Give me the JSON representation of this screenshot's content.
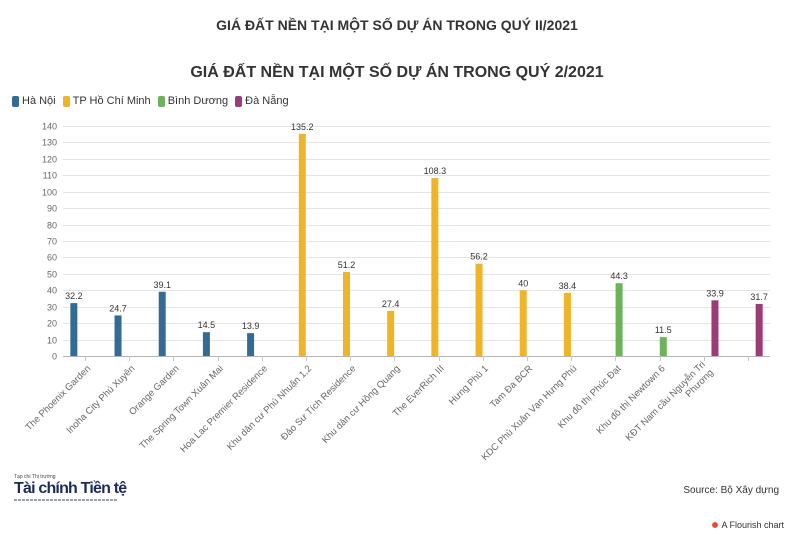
{
  "page": {
    "heading": "GIÁ ĐẤT NỀN TẠI MỘT SỐ DỰ ÁN TRONG QUÝ II/2021"
  },
  "chart_data": {
    "type": "bar",
    "title": "GIÁ ĐẤT NỀN TẠI MỘT SỐ DỰ ÁN TRONG QUÝ 2/2021",
    "xlabel": "",
    "ylabel": "",
    "ylim": [
      0,
      140
    ],
    "yticks": [
      0,
      10,
      20,
      30,
      40,
      50,
      60,
      70,
      80,
      90,
      100,
      110,
      120,
      130,
      140
    ],
    "grid": true,
    "legend_position": "top-left",
    "categories": [
      "The Phoenix Garden",
      "Inoha City Phú Xuyên",
      "Orange Garden",
      "The Spring Town Xuân Mai",
      "Hoa Lac Premier Residence",
      "Khu dân cư Phú Nhuận 1,2",
      "Đảo Sư Tích Residence",
      "Khu dân cư Hồng Quang",
      "The EverRich III",
      "Hưng Phú 1",
      "Tam Đa BCR",
      "KDC Phú Xuân Vạn Hưng Phú",
      "Khu đô thị Phúc Đạt",
      "Khu đô thị Newtown 6",
      [
        "KĐT Nam cầu Nguyễn Tri",
        "Phương"
      ],
      ""
    ],
    "series": [
      {
        "name": "Hà Nội",
        "color": "#346b94",
        "values": [
          32.2,
          24.7,
          39.1,
          14.5,
          13.9,
          null,
          null,
          null,
          null,
          null,
          null,
          null,
          null,
          null,
          null,
          null
        ]
      },
      {
        "name": "TP Hồ Chí Minh",
        "color": "#f0b429",
        "values": [
          null,
          null,
          null,
          null,
          null,
          135.2,
          51.2,
          27.4,
          108.3,
          56.2,
          40,
          38.4,
          null,
          null,
          null,
          null
        ]
      },
      {
        "name": "Bình Dương",
        "color": "#6db35a",
        "values": [
          null,
          null,
          null,
          null,
          null,
          null,
          null,
          null,
          null,
          null,
          null,
          null,
          44.3,
          11.5,
          null,
          null
        ]
      },
      {
        "name": "Đà Nẵng",
        "color": "#9b3b78",
        "values": [
          null,
          null,
          null,
          null,
          null,
          null,
          null,
          null,
          null,
          null,
          null,
          null,
          null,
          null,
          33.9,
          31.7
        ]
      }
    ],
    "source": "Source: Bộ Xây dựng"
  },
  "logo": {
    "top_line": "Tạp chí Thị trường",
    "name": "Tài chính Tiền tệ"
  },
  "footer": {
    "flourish_icon": "flourish-logo-icon",
    "flourish_icon_color": "#e2483d",
    "flourish_credit": "A Flourish chart"
  }
}
